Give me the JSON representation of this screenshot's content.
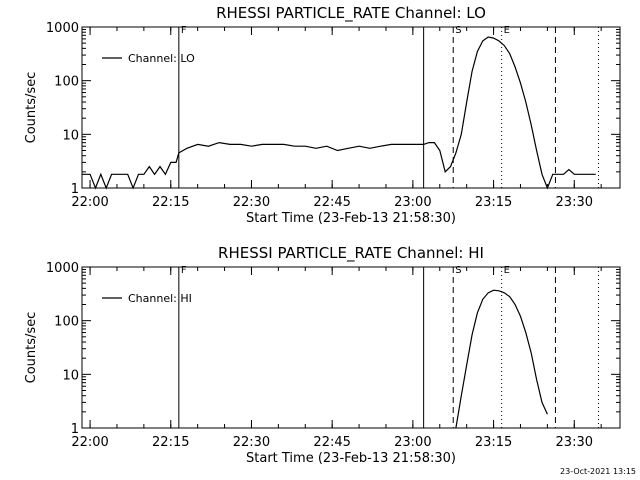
{
  "footer": {
    "timestamp": "23-Oct-2021 13:15"
  },
  "chart_data": [
    {
      "type": "line",
      "title": "RHESSI PARTICLE_RATE Channel: LO",
      "xlabel": "Start Time (23-Feb-13 21:58:30)",
      "ylabel": "Counts/sec",
      "y_scale": "log",
      "xlim": [
        "21:58:30",
        "23:38:30"
      ],
      "ylim": [
        1,
        1000
      ],
      "x_ticks": [
        "22:00",
        "22:15",
        "22:30",
        "22:45",
        "23:00",
        "23:15",
        "23:30"
      ],
      "y_ticks": [
        "1",
        "10",
        "100",
        "1000"
      ],
      "grid": false,
      "legend": {
        "position": "top-left",
        "entries": [
          "Channel: LO"
        ]
      },
      "series": [
        {
          "name": "Channel: LO",
          "x": [
            "21:58:30",
            "22:00",
            "22:01",
            "22:02",
            "22:03",
            "22:04",
            "22:05",
            "22:06",
            "22:07",
            "22:08",
            "22:09",
            "22:10",
            "22:11",
            "22:12",
            "22:13",
            "22:14",
            "22:15",
            "22:16",
            "22:16:30",
            "22:18",
            "22:20",
            "22:22",
            "22:24",
            "22:26",
            "22:28",
            "22:30",
            "22:32",
            "22:34",
            "22:36",
            "22:38",
            "22:40",
            "22:42",
            "22:44",
            "22:46",
            "22:48",
            "22:50",
            "22:52",
            "22:54",
            "22:56",
            "22:58",
            "23:00",
            "23:02",
            "23:03",
            "23:04",
            "23:05",
            "23:06",
            "23:07",
            "23:08",
            "23:09",
            "23:10",
            "23:11",
            "23:12",
            "23:13",
            "23:14",
            "23:15",
            "23:16",
            "23:17",
            "23:18",
            "23:19",
            "23:20",
            "23:21",
            "23:22",
            "23:23",
            "23:24",
            "23:25",
            "23:26",
            "23:27",
            "23:28",
            "23:29",
            "23:30",
            "23:31",
            "23:32",
            "23:33",
            "23:34"
          ],
          "y": [
            1.8,
            1.8,
            1.0,
            1.8,
            1.0,
            1.8,
            1.8,
            1.8,
            1.8,
            1.0,
            1.8,
            1.8,
            2.5,
            1.8,
            2.5,
            1.8,
            3.0,
            3.0,
            4.5,
            5.5,
            6.5,
            6.0,
            7.0,
            6.5,
            6.5,
            6.0,
            6.5,
            6.5,
            6.5,
            6.0,
            6.0,
            5.5,
            6.0,
            5.0,
            5.5,
            6.0,
            5.5,
            6.0,
            6.5,
            6.5,
            6.5,
            6.5,
            7.0,
            7.0,
            5.0,
            2.0,
            2.5,
            4.5,
            10,
            40,
            150,
            350,
            550,
            650,
            620,
            550,
            450,
            320,
            180,
            90,
            40,
            15,
            5,
            1.8,
            1.0,
            1.8,
            1.8,
            1.8,
            2.2,
            1.8,
            1.8,
            1.8,
            1.8,
            1.8
          ]
        }
      ],
      "annotations": [
        {
          "label": "F",
          "x": "22:16:30",
          "style": "solid"
        },
        {
          "label": "",
          "x": "23:02:00",
          "style": "solid"
        },
        {
          "label": "S",
          "x": "23:07:30",
          "style": "dashed"
        },
        {
          "label": "E",
          "x": "23:16:30",
          "style": "dotted"
        },
        {
          "label": "",
          "x": "23:26:30",
          "style": "dashed"
        },
        {
          "label": "",
          "x": "23:34:30",
          "style": "dotted"
        }
      ]
    },
    {
      "type": "line",
      "title": "RHESSI PARTICLE_RATE Channel: HI",
      "xlabel": "Start Time (23-Feb-13 21:58:30)",
      "ylabel": "Counts/sec",
      "y_scale": "log",
      "xlim": [
        "21:58:30",
        "23:38:30"
      ],
      "ylim": [
        1,
        1000
      ],
      "x_ticks": [
        "22:00",
        "22:15",
        "22:30",
        "22:45",
        "23:00",
        "23:15",
        "23:30"
      ],
      "y_ticks": [
        "1",
        "10",
        "100",
        "1000"
      ],
      "grid": false,
      "legend": {
        "position": "top-left",
        "entries": [
          "Channel: HI"
        ]
      },
      "series": [
        {
          "name": "Channel: HI",
          "x": [
            "23:08",
            "23:09",
            "23:10",
            "23:11",
            "23:12",
            "23:13",
            "23:14",
            "23:15",
            "23:16",
            "23:17",
            "23:18",
            "23:19",
            "23:20",
            "23:21",
            "23:22",
            "23:23",
            "23:24",
            "23:25"
          ],
          "y": [
            1.0,
            4,
            15,
            55,
            140,
            250,
            330,
            370,
            360,
            330,
            280,
            200,
            120,
            60,
            25,
            8,
            3,
            1.8
          ]
        }
      ],
      "annotations": [
        {
          "label": "F",
          "x": "22:16:30",
          "style": "solid"
        },
        {
          "label": "",
          "x": "23:02:00",
          "style": "solid"
        },
        {
          "label": "S",
          "x": "23:07:30",
          "style": "dashed"
        },
        {
          "label": "E",
          "x": "23:16:30",
          "style": "dotted"
        },
        {
          "label": "",
          "x": "23:26:30",
          "style": "dashed"
        },
        {
          "label": "",
          "x": "23:34:30",
          "style": "dotted"
        }
      ]
    }
  ]
}
